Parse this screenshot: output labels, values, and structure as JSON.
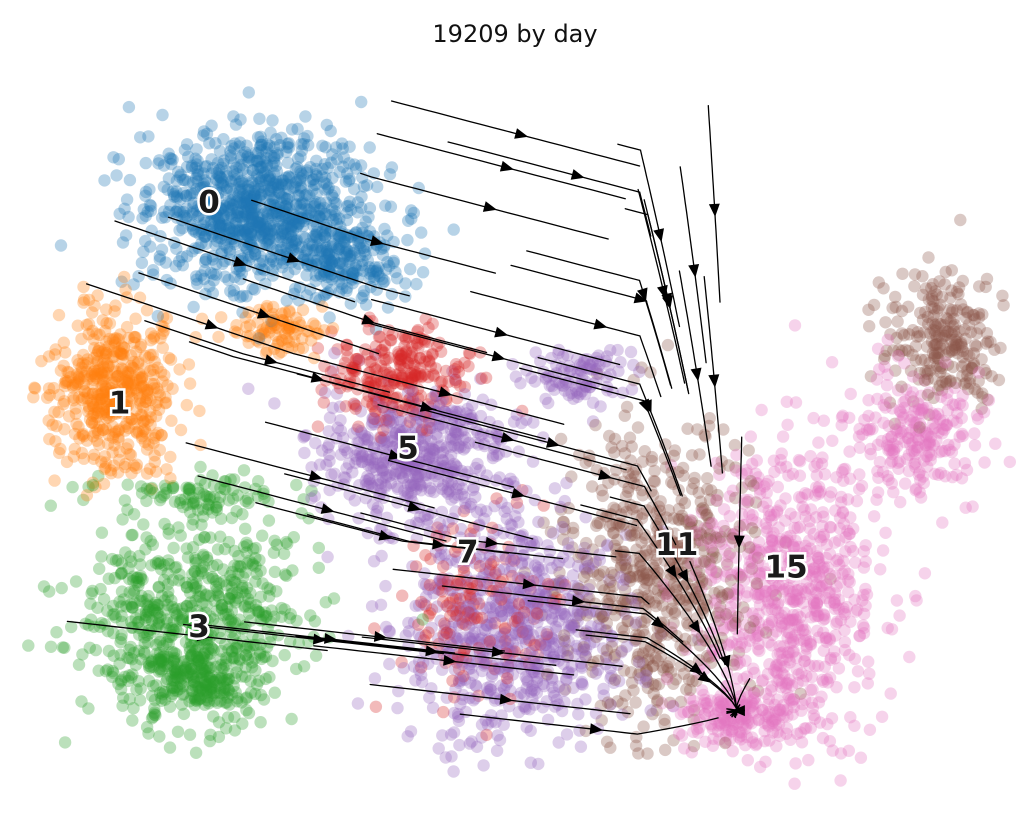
{
  "chart_data": {
    "type": "scatter",
    "title": "19209 by day",
    "axes_visible": false,
    "grid": false,
    "legend": "on data",
    "overlay": "velocity streamlines with arrowheads",
    "x_range": [
      0,
      1
    ],
    "y_range": [
      0,
      1
    ],
    "series": [
      {
        "name": "0",
        "color": "#1f77b4",
        "label_at": [
          0.19,
          0.8
        ],
        "lobes": [
          [
            0.24,
            0.79,
            0.115,
            0.105,
            950
          ],
          [
            0.33,
            0.72,
            0.06,
            0.05,
            180
          ]
        ]
      },
      {
        "name": "1",
        "color": "#ff7f0e",
        "label_at": [
          0.1,
          0.53
        ],
        "lobes": [
          [
            0.09,
            0.55,
            0.065,
            0.11,
            480
          ],
          [
            0.26,
            0.63,
            0.05,
            0.03,
            90
          ]
        ]
      },
      {
        "name": "3",
        "color": "#2ca02c",
        "label_at": [
          0.18,
          0.23
        ],
        "lobes": [
          [
            0.17,
            0.25,
            0.11,
            0.13,
            620
          ],
          [
            0.18,
            0.41,
            0.09,
            0.03,
            90
          ],
          [
            0.18,
            0.16,
            0.06,
            0.05,
            200
          ]
        ]
      },
      {
        "name": "5",
        "color": "#d62728",
        "label_at": [
          0.39,
          0.47
        ],
        "lobes": [
          [
            0.38,
            0.57,
            0.07,
            0.07,
            260
          ],
          [
            0.46,
            0.25,
            0.08,
            0.12,
            160
          ]
        ]
      },
      {
        "name": "7",
        "color": "#9467bd",
        "label_at": [
          0.45,
          0.33
        ],
        "lobes": [
          [
            0.4,
            0.46,
            0.1,
            0.09,
            520
          ],
          [
            0.5,
            0.23,
            0.11,
            0.14,
            720
          ],
          [
            0.56,
            0.57,
            0.05,
            0.04,
            100
          ]
        ]
      },
      {
        "name": "11",
        "color": "#8c564b",
        "label_at": [
          0.66,
          0.34
        ],
        "lobes": [
          [
            0.64,
            0.3,
            0.09,
            0.2,
            620
          ],
          [
            0.93,
            0.62,
            0.06,
            0.09,
            240
          ]
        ]
      },
      {
        "name": "15",
        "color": "#e377c2",
        "label_at": [
          0.77,
          0.31
        ],
        "lobes": [
          [
            0.77,
            0.27,
            0.09,
            0.2,
            720
          ],
          [
            0.9,
            0.49,
            0.07,
            0.08,
            220
          ],
          [
            0.72,
            0.11,
            0.07,
            0.04,
            160
          ]
        ]
      }
    ]
  }
}
